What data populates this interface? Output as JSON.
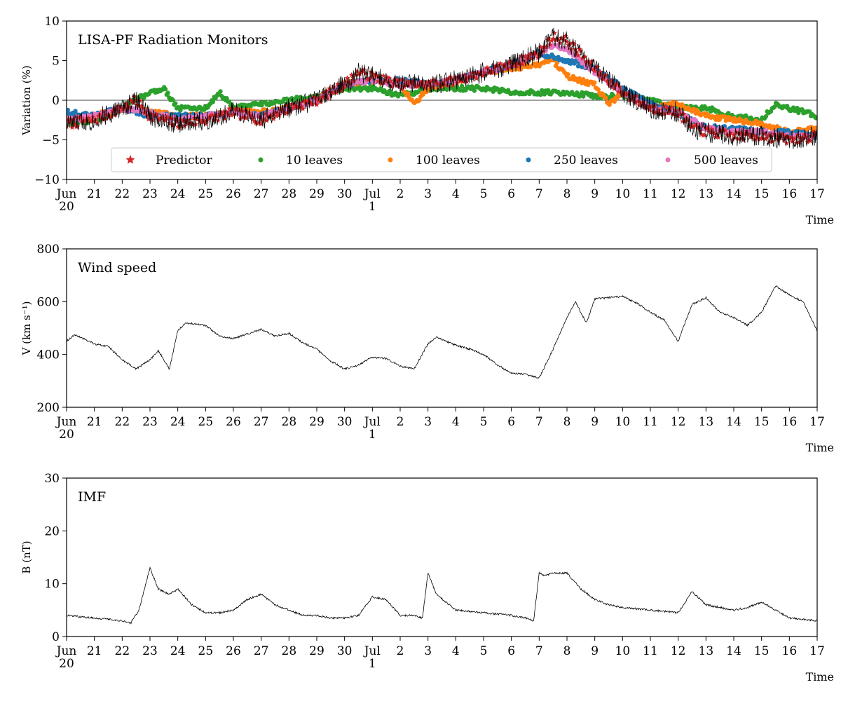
{
  "chart_data": [
    {
      "type": "scatter",
      "title": "LISA-PF Radiation Monitors",
      "xlabel": "Time",
      "ylabel": "Variation (%)",
      "ylim": [
        -10,
        10
      ],
      "yticks": [
        -10,
        -5,
        0,
        5,
        10
      ],
      "xlim": [
        "Jun 20",
        "Jul 17"
      ],
      "xtick_labels": [
        "Jun",
        "21",
        "22",
        "23",
        "24",
        "25",
        "26",
        "27",
        "28",
        "29",
        "30",
        "Jul",
        "2",
        "3",
        "4",
        "5",
        "6",
        "7",
        "8",
        "9",
        "10",
        "11",
        "12",
        "13",
        "14",
        "15",
        "16",
        "17"
      ],
      "xtick_sublabels": [
        "20",
        "1"
      ],
      "zero_line": true,
      "grid": false,
      "legend": {
        "placement": "lower-center",
        "columns": 5
      },
      "series": [
        {
          "name": "Predictor",
          "marker": "star",
          "color": "#d62728",
          "x": [
            0,
            1,
            2,
            2.5,
            3,
            4,
            5,
            6,
            7,
            8,
            9,
            10,
            10.5,
            11,
            12,
            13,
            14,
            15,
            16,
            17,
            17.5,
            18,
            19,
            20,
            21,
            22,
            22.5,
            23,
            24,
            25,
            26,
            27
          ],
          "y": [
            -3,
            -2.5,
            -1,
            0,
            -2,
            -3,
            -2.5,
            -1.5,
            -2.5,
            -1,
            0,
            2,
            3.5,
            3,
            2,
            2,
            2.5,
            3.5,
            4.5,
            6,
            8,
            7.5,
            4,
            1,
            -1,
            -1.5,
            -3.5,
            -4,
            -4.5,
            -4.5,
            -5,
            -4.5
          ]
        },
        {
          "name": "10 leaves",
          "marker": "circle",
          "color": "#2ca02c",
          "x": [
            0,
            1,
            2,
            3,
            3.5,
            4,
            5,
            5.5,
            6,
            7,
            8,
            9,
            10,
            11,
            12,
            13,
            14,
            15,
            16,
            17,
            18,
            19,
            20,
            21,
            22,
            23,
            24,
            25,
            25.5,
            26,
            27
          ],
          "y": [
            -3,
            -2.5,
            -1,
            1,
            1.5,
            -1,
            -1,
            1,
            -1,
            -0.5,
            0,
            0.5,
            1.5,
            1.5,
            0.5,
            1.5,
            1.5,
            1.5,
            1,
            1,
            1,
            0.5,
            0.5,
            0,
            -1,
            -1,
            -2,
            -2.5,
            -0.5,
            -1,
            -2
          ]
        },
        {
          "name": "100 leaves",
          "marker": "circle",
          "color": "#ff7f0e",
          "x": [
            0,
            1,
            2,
            3,
            4,
            5,
            6,
            7,
            8,
            9,
            10,
            11,
            12,
            12.5,
            13,
            14,
            15,
            16,
            17,
            17.5,
            18,
            19,
            19.5,
            20,
            21,
            22,
            23,
            24,
            25,
            26,
            27
          ],
          "y": [
            -2,
            -2,
            -1,
            -1.5,
            -2,
            -2,
            -1.5,
            -1.5,
            -1,
            0,
            2,
            2.5,
            2,
            -0.5,
            1.5,
            2.5,
            3.5,
            4,
            4.5,
            5,
            3,
            2,
            -0.5,
            1,
            -1,
            -0.5,
            -2,
            -2.5,
            -3,
            -4,
            -3.5
          ]
        },
        {
          "name": "250 leaves",
          "marker": "circle",
          "color": "#1f77b4",
          "x": [
            0,
            1,
            2,
            3,
            4,
            5,
            6,
            7,
            8,
            9,
            10,
            11,
            12,
            13,
            14,
            15,
            16,
            17,
            18,
            19,
            20,
            21,
            22,
            23,
            24,
            25,
            26,
            27
          ],
          "y": [
            -1.5,
            -2,
            -1,
            -2,
            -2,
            -2,
            -1.5,
            -2,
            -1,
            0,
            2,
            2.5,
            2.5,
            2,
            2.5,
            3.5,
            4.5,
            6,
            5,
            4,
            1.5,
            -0.5,
            -1.5,
            -3.5,
            -3.5,
            -4,
            -4,
            -4.5
          ]
        },
        {
          "name": "500 leaves",
          "marker": "circle",
          "color": "#e377c2",
          "x": [
            0,
            1,
            2,
            3,
            4,
            5,
            6,
            7,
            8,
            9,
            10,
            11,
            12,
            13,
            14,
            15,
            16,
            17,
            17.5,
            18,
            19,
            20,
            21,
            22,
            23,
            24,
            25,
            26,
            27
          ],
          "y": [
            -2.5,
            -2,
            -1,
            -1.5,
            -2.5,
            -2,
            -1.5,
            -2,
            -1,
            0,
            2,
            2.5,
            2,
            2,
            2.5,
            3.5,
            4.5,
            6,
            7,
            6.5,
            3.5,
            1,
            -1,
            -1.5,
            -3.5,
            -4,
            -4,
            -4.5,
            -4.5
          ]
        }
      ]
    },
    {
      "type": "line",
      "title": "Wind speed",
      "xlabel": "Time",
      "ylabel": "V (km s⁻¹)",
      "ylim": [
        200,
        800
      ],
      "yticks": [
        200,
        400,
        600,
        800
      ],
      "xlim": [
        "Jun 20",
        "Jul 17"
      ],
      "xtick_labels": [
        "Jun",
        "21",
        "22",
        "23",
        "24",
        "25",
        "26",
        "27",
        "28",
        "29",
        "30",
        "Jul",
        "2",
        "3",
        "4",
        "5",
        "6",
        "7",
        "8",
        "9",
        "10",
        "11",
        "12",
        "13",
        "14",
        "15",
        "16",
        "17"
      ],
      "xtick_sublabels": [
        "20",
        "1"
      ],
      "grid": false,
      "series": [
        {
          "color": "#000000",
          "x": [
            0,
            0.3,
            1,
            1.5,
            2,
            2.5,
            3,
            3.3,
            3.7,
            4,
            4.3,
            5,
            5.5,
            6,
            7,
            7.5,
            8,
            8.5,
            9,
            9.5,
            10,
            10.5,
            11,
            11.5,
            12,
            12.5,
            13,
            13.3,
            14,
            14.5,
            15,
            15.5,
            16,
            16.5,
            17,
            17.5,
            18,
            18.3,
            18.7,
            19,
            19.5,
            20,
            20.5,
            21,
            21.5,
            22,
            22.5,
            23,
            23.5,
            24,
            24.5,
            25,
            25.5,
            26,
            26.5,
            27
          ],
          "y": [
            450,
            475,
            440,
            430,
            380,
            345,
            380,
            415,
            345,
            490,
            520,
            510,
            470,
            460,
            495,
            470,
            480,
            445,
            420,
            375,
            345,
            360,
            390,
            385,
            355,
            345,
            440,
            465,
            435,
            420,
            400,
            360,
            330,
            325,
            310,
            420,
            540,
            600,
            520,
            610,
            615,
            620,
            595,
            560,
            530,
            450,
            590,
            615,
            560,
            540,
            510,
            560,
            660,
            625,
            600,
            490
          ]
        }
      ]
    },
    {
      "type": "line",
      "title": "IMF",
      "xlabel": "Time",
      "ylabel": "B (nT)",
      "ylim": [
        0,
        30
      ],
      "yticks": [
        0,
        10,
        20,
        30
      ],
      "xlim": [
        "Jun 20",
        "Jul 17"
      ],
      "xtick_labels": [
        "Jun",
        "21",
        "22",
        "23",
        "24",
        "25",
        "26",
        "27",
        "28",
        "29",
        "30",
        "Jul",
        "2",
        "3",
        "4",
        "5",
        "6",
        "7",
        "8",
        "9",
        "10",
        "11",
        "12",
        "13",
        "14",
        "15",
        "16",
        "17"
      ],
      "xtick_sublabels": [
        "20",
        "1"
      ],
      "grid": false,
      "series": [
        {
          "color": "#000000",
          "x": [
            0,
            1,
            2,
            2.3,
            2.6,
            2.8,
            3,
            3.3,
            3.7,
            4,
            4.5,
            5,
            5.5,
            6,
            6.5,
            7,
            7.5,
            8,
            8.5,
            9,
            9.5,
            10,
            10.5,
            11,
            11.5,
            12,
            12.5,
            12.8,
            13,
            13.3,
            14,
            15,
            16,
            16.5,
            16.8,
            17,
            17.2,
            17.5,
            18,
            18.5,
            19,
            19.5,
            20,
            21,
            22,
            22.5,
            23,
            24,
            24.5,
            25,
            25.5,
            26,
            27
          ],
          "y": [
            4,
            3.5,
            3,
            2.5,
            5,
            9,
            13,
            9,
            8,
            9,
            6,
            4.5,
            4.5,
            5,
            7,
            8,
            6,
            5,
            4,
            4,
            3.5,
            3.5,
            4,
            7.5,
            7,
            4,
            4,
            3.5,
            12,
            8,
            5,
            4.5,
            4,
            3.5,
            3,
            12,
            11.5,
            12,
            12,
            9,
            7,
            6,
            5.5,
            5,
            4.5,
            8.5,
            6,
            5,
            5.5,
            6.5,
            5,
            3.5,
            3
          ]
        }
      ]
    }
  ]
}
